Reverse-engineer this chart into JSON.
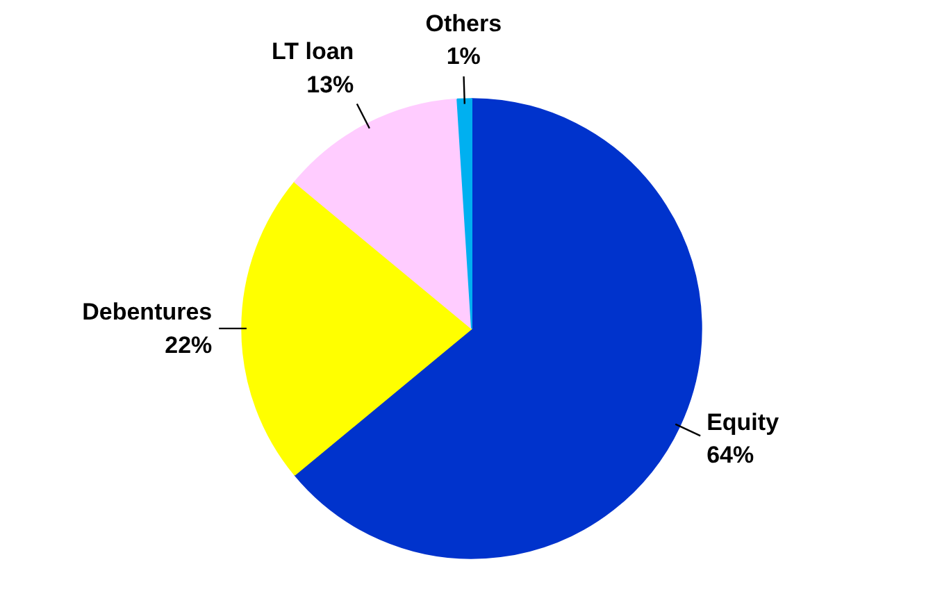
{
  "chart_data": {
    "type": "pie",
    "categories": [
      "Equity",
      "Debentures",
      "LT loan",
      "Others"
    ],
    "values": [
      64,
      22,
      13,
      1
    ],
    "colors": [
      "#0033cc",
      "#ffff00",
      "#ffccff",
      "#00b0f0"
    ],
    "value_labels": [
      "64%",
      "22%",
      "13%",
      "1%"
    ]
  }
}
